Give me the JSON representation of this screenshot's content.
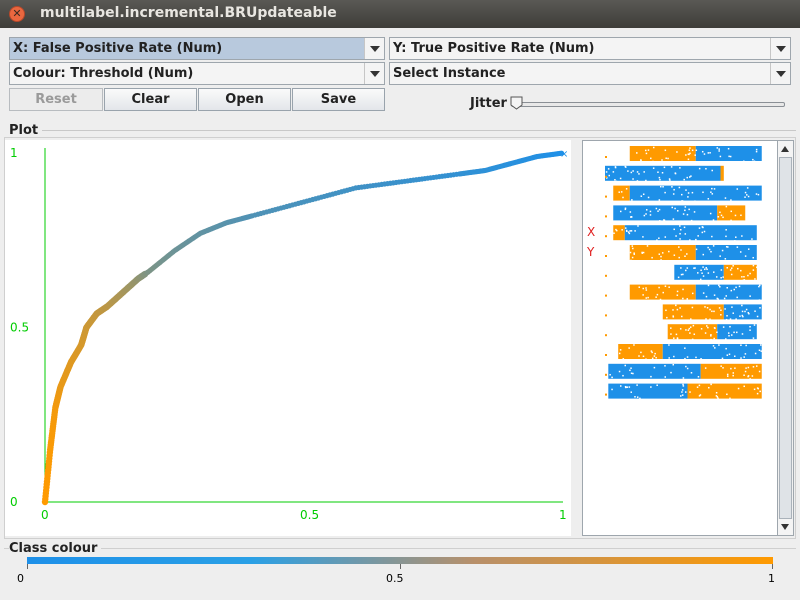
{
  "window": {
    "title": "multilabel.incremental.BRUpdateable"
  },
  "controls": {
    "x_axis": "X: False Positive Rate (Num)",
    "y_axis": "Y: True Positive Rate (Num)",
    "colour": "Colour: Threshold (Num)",
    "instance": "Select Instance",
    "reset": "Reset",
    "clear": "Clear",
    "open": "Open",
    "save": "Save",
    "jitter": "Jitter",
    "jitter_level": 0
  },
  "plot": {
    "label": "Plot",
    "x_ticks": [
      "0",
      "0.5",
      "1"
    ],
    "y_ticks": [
      "0",
      "0.5",
      "1"
    ],
    "axis_color": "#00cc00",
    "start_color": "#ff9a00",
    "end_color": "#1e90e8"
  },
  "matrix": {
    "x_marker": "X",
    "y_marker": "Y"
  },
  "chart_data": {
    "type": "line",
    "xlabel": "False Positive Rate",
    "ylabel": "True Positive Rate",
    "color_by": "Threshold",
    "xlim": [
      0,
      1
    ],
    "ylim": [
      0,
      1
    ],
    "grid": false,
    "x": [
      0,
      0.01,
      0.02,
      0.03,
      0.05,
      0.07,
      0.08,
      0.1,
      0.12,
      0.15,
      0.18,
      0.2,
      0.25,
      0.3,
      0.35,
      0.4,
      0.5,
      0.6,
      0.7,
      0.8,
      0.85,
      0.9,
      0.95,
      1.0
    ],
    "y": [
      0,
      0.15,
      0.27,
      0.33,
      0.4,
      0.45,
      0.5,
      0.54,
      0.56,
      0.6,
      0.64,
      0.66,
      0.72,
      0.77,
      0.8,
      0.82,
      0.86,
      0.9,
      0.92,
      0.94,
      0.95,
      0.97,
      0.99,
      1.0
    ],
    "threshold": [
      1,
      0.98,
      0.95,
      0.9,
      0.86,
      0.82,
      0.78,
      0.74,
      0.7,
      0.62,
      0.52,
      0.42,
      0.35,
      0.3,
      0.26,
      0.22,
      0.18,
      0.15,
      0.12,
      0.09,
      0.07,
      0.05,
      0.03,
      0
    ]
  },
  "class_colour": {
    "label": "Class colour",
    "ticks": [
      "0",
      "0.5",
      "1"
    ]
  }
}
